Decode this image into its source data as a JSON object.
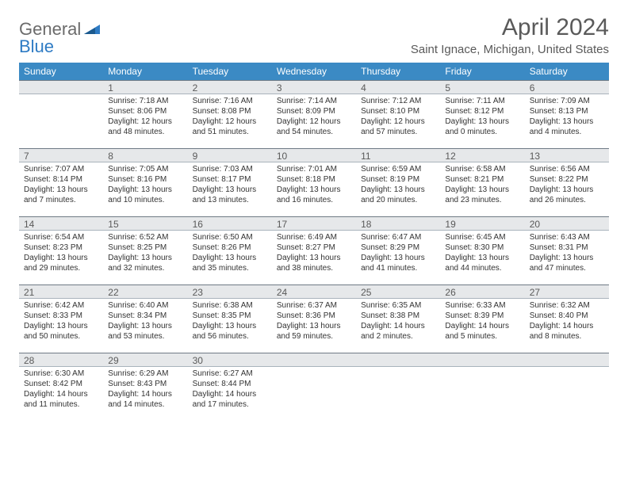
{
  "brand": {
    "text1": "General",
    "text2": "Blue"
  },
  "title": "April 2024",
  "location": "Saint Ignace, Michigan, United States",
  "colors": {
    "header_bg": "#3b8ac4",
    "header_text": "#ffffff",
    "daynum_bg": "#e6e8ea",
    "daynum_border_top": "#6f7a85",
    "daynum_border_bottom": "#a9b3bc",
    "text": "#333333",
    "title_text": "#5a5a5a",
    "brand_gray": "#6b6b6b",
    "brand_blue": "#2e7bc4"
  },
  "typography": {
    "title_fontsize": 30,
    "location_fontsize": 15,
    "header_fontsize": 12,
    "daynum_fontsize": 12,
    "cell_fontsize": 10
  },
  "day_headers": [
    "Sunday",
    "Monday",
    "Tuesday",
    "Wednesday",
    "Thursday",
    "Friday",
    "Saturday"
  ],
  "weeks": [
    [
      {
        "n": "",
        "sr": "",
        "ss": "",
        "dl": ""
      },
      {
        "n": "1",
        "sr": "Sunrise: 7:18 AM",
        "ss": "Sunset: 8:06 PM",
        "dl": "Daylight: 12 hours and 48 minutes."
      },
      {
        "n": "2",
        "sr": "Sunrise: 7:16 AM",
        "ss": "Sunset: 8:08 PM",
        "dl": "Daylight: 12 hours and 51 minutes."
      },
      {
        "n": "3",
        "sr": "Sunrise: 7:14 AM",
        "ss": "Sunset: 8:09 PM",
        "dl": "Daylight: 12 hours and 54 minutes."
      },
      {
        "n": "4",
        "sr": "Sunrise: 7:12 AM",
        "ss": "Sunset: 8:10 PM",
        "dl": "Daylight: 12 hours and 57 minutes."
      },
      {
        "n": "5",
        "sr": "Sunrise: 7:11 AM",
        "ss": "Sunset: 8:12 PM",
        "dl": "Daylight: 13 hours and 0 minutes."
      },
      {
        "n": "6",
        "sr": "Sunrise: 7:09 AM",
        "ss": "Sunset: 8:13 PM",
        "dl": "Daylight: 13 hours and 4 minutes."
      }
    ],
    [
      {
        "n": "7",
        "sr": "Sunrise: 7:07 AM",
        "ss": "Sunset: 8:14 PM",
        "dl": "Daylight: 13 hours and 7 minutes."
      },
      {
        "n": "8",
        "sr": "Sunrise: 7:05 AM",
        "ss": "Sunset: 8:16 PM",
        "dl": "Daylight: 13 hours and 10 minutes."
      },
      {
        "n": "9",
        "sr": "Sunrise: 7:03 AM",
        "ss": "Sunset: 8:17 PM",
        "dl": "Daylight: 13 hours and 13 minutes."
      },
      {
        "n": "10",
        "sr": "Sunrise: 7:01 AM",
        "ss": "Sunset: 8:18 PM",
        "dl": "Daylight: 13 hours and 16 minutes."
      },
      {
        "n": "11",
        "sr": "Sunrise: 6:59 AM",
        "ss": "Sunset: 8:19 PM",
        "dl": "Daylight: 13 hours and 20 minutes."
      },
      {
        "n": "12",
        "sr": "Sunrise: 6:58 AM",
        "ss": "Sunset: 8:21 PM",
        "dl": "Daylight: 13 hours and 23 minutes."
      },
      {
        "n": "13",
        "sr": "Sunrise: 6:56 AM",
        "ss": "Sunset: 8:22 PM",
        "dl": "Daylight: 13 hours and 26 minutes."
      }
    ],
    [
      {
        "n": "14",
        "sr": "Sunrise: 6:54 AM",
        "ss": "Sunset: 8:23 PM",
        "dl": "Daylight: 13 hours and 29 minutes."
      },
      {
        "n": "15",
        "sr": "Sunrise: 6:52 AM",
        "ss": "Sunset: 8:25 PM",
        "dl": "Daylight: 13 hours and 32 minutes."
      },
      {
        "n": "16",
        "sr": "Sunrise: 6:50 AM",
        "ss": "Sunset: 8:26 PM",
        "dl": "Daylight: 13 hours and 35 minutes."
      },
      {
        "n": "17",
        "sr": "Sunrise: 6:49 AM",
        "ss": "Sunset: 8:27 PM",
        "dl": "Daylight: 13 hours and 38 minutes."
      },
      {
        "n": "18",
        "sr": "Sunrise: 6:47 AM",
        "ss": "Sunset: 8:29 PM",
        "dl": "Daylight: 13 hours and 41 minutes."
      },
      {
        "n": "19",
        "sr": "Sunrise: 6:45 AM",
        "ss": "Sunset: 8:30 PM",
        "dl": "Daylight: 13 hours and 44 minutes."
      },
      {
        "n": "20",
        "sr": "Sunrise: 6:43 AM",
        "ss": "Sunset: 8:31 PM",
        "dl": "Daylight: 13 hours and 47 minutes."
      }
    ],
    [
      {
        "n": "21",
        "sr": "Sunrise: 6:42 AM",
        "ss": "Sunset: 8:33 PM",
        "dl": "Daylight: 13 hours and 50 minutes."
      },
      {
        "n": "22",
        "sr": "Sunrise: 6:40 AM",
        "ss": "Sunset: 8:34 PM",
        "dl": "Daylight: 13 hours and 53 minutes."
      },
      {
        "n": "23",
        "sr": "Sunrise: 6:38 AM",
        "ss": "Sunset: 8:35 PM",
        "dl": "Daylight: 13 hours and 56 minutes."
      },
      {
        "n": "24",
        "sr": "Sunrise: 6:37 AM",
        "ss": "Sunset: 8:36 PM",
        "dl": "Daylight: 13 hours and 59 minutes."
      },
      {
        "n": "25",
        "sr": "Sunrise: 6:35 AM",
        "ss": "Sunset: 8:38 PM",
        "dl": "Daylight: 14 hours and 2 minutes."
      },
      {
        "n": "26",
        "sr": "Sunrise: 6:33 AM",
        "ss": "Sunset: 8:39 PM",
        "dl": "Daylight: 14 hours and 5 minutes."
      },
      {
        "n": "27",
        "sr": "Sunrise: 6:32 AM",
        "ss": "Sunset: 8:40 PM",
        "dl": "Daylight: 14 hours and 8 minutes."
      }
    ],
    [
      {
        "n": "28",
        "sr": "Sunrise: 6:30 AM",
        "ss": "Sunset: 8:42 PM",
        "dl": "Daylight: 14 hours and 11 minutes."
      },
      {
        "n": "29",
        "sr": "Sunrise: 6:29 AM",
        "ss": "Sunset: 8:43 PM",
        "dl": "Daylight: 14 hours and 14 minutes."
      },
      {
        "n": "30",
        "sr": "Sunrise: 6:27 AM",
        "ss": "Sunset: 8:44 PM",
        "dl": "Daylight: 14 hours and 17 minutes."
      },
      {
        "n": "",
        "sr": "",
        "ss": "",
        "dl": ""
      },
      {
        "n": "",
        "sr": "",
        "ss": "",
        "dl": ""
      },
      {
        "n": "",
        "sr": "",
        "ss": "",
        "dl": ""
      },
      {
        "n": "",
        "sr": "",
        "ss": "",
        "dl": ""
      }
    ]
  ]
}
